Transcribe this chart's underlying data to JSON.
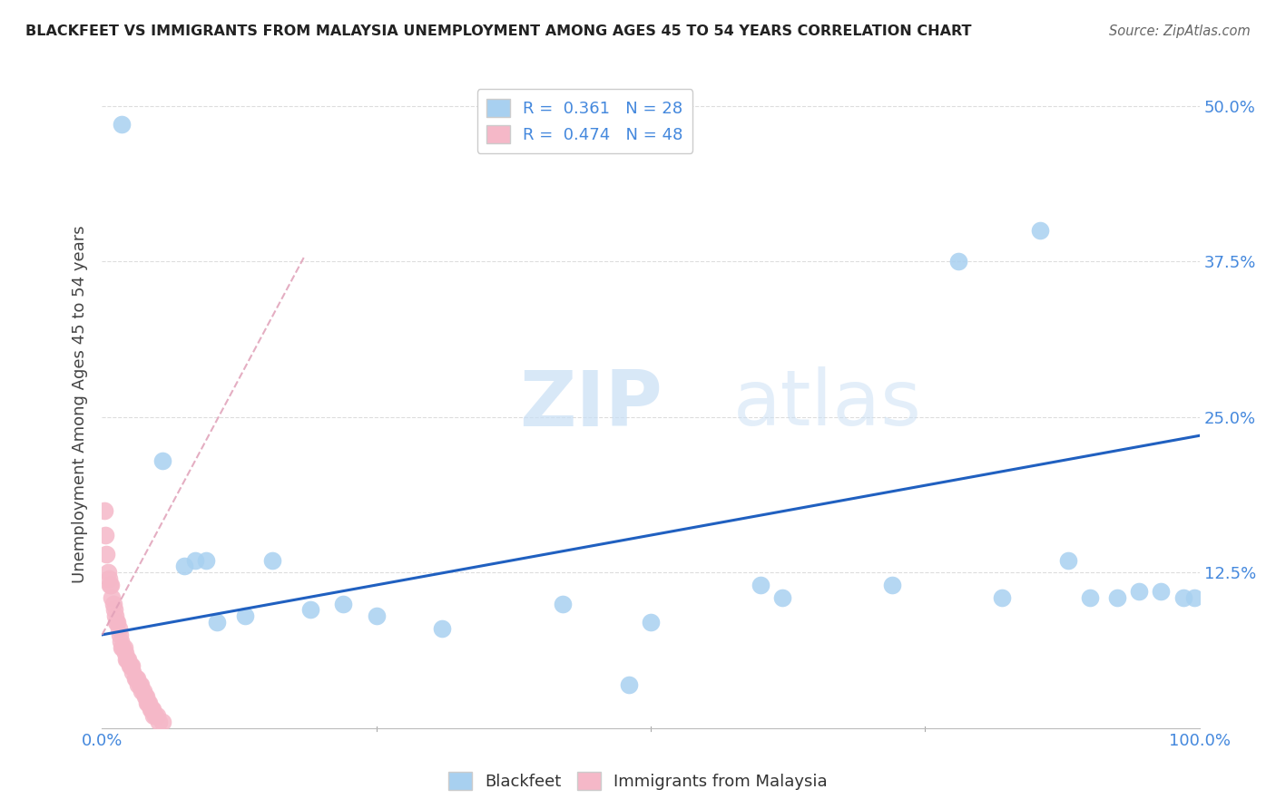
{
  "title": "BLACKFEET VS IMMIGRANTS FROM MALAYSIA UNEMPLOYMENT AMONG AGES 45 TO 54 YEARS CORRELATION CHART",
  "source": "Source: ZipAtlas.com",
  "ylabel": "Unemployment Among Ages 45 to 54 years",
  "xlim": [
    0.0,
    1.0
  ],
  "ylim": [
    0.0,
    0.52
  ],
  "ytick_positions": [
    0.0,
    0.125,
    0.25,
    0.375,
    0.5
  ],
  "yticklabels_right": [
    "",
    "12.5%",
    "25.0%",
    "37.5%",
    "50.0%"
  ],
  "blackfeet_R": 0.361,
  "blackfeet_N": 28,
  "malaysia_R": 0.474,
  "malaysia_N": 48,
  "blackfeet_color": "#a8d0f0",
  "malaysia_color": "#f5b8c8",
  "trendline_blue_color": "#2060c0",
  "trendline_pink_color": "#e0a0b8",
  "blackfeet_scatter_x": [
    0.018,
    0.055,
    0.075,
    0.085,
    0.095,
    0.105,
    0.13,
    0.155,
    0.19,
    0.22,
    0.25,
    0.31,
    0.42,
    0.5,
    0.6,
    0.72,
    0.78,
    0.82,
    0.855,
    0.88,
    0.9,
    0.925,
    0.945,
    0.965,
    0.985,
    0.995,
    0.62,
    0.48
  ],
  "blackfeet_scatter_y": [
    0.485,
    0.215,
    0.13,
    0.135,
    0.135,
    0.085,
    0.09,
    0.135,
    0.095,
    0.1,
    0.09,
    0.08,
    0.1,
    0.085,
    0.115,
    0.115,
    0.375,
    0.105,
    0.4,
    0.135,
    0.105,
    0.105,
    0.11,
    0.11,
    0.105,
    0.105,
    0.105,
    0.035
  ],
  "malaysia_scatter_x": [
    0.002,
    0.003,
    0.004,
    0.005,
    0.006,
    0.007,
    0.008,
    0.009,
    0.01,
    0.011,
    0.012,
    0.013,
    0.014,
    0.015,
    0.016,
    0.017,
    0.018,
    0.019,
    0.02,
    0.021,
    0.022,
    0.023,
    0.024,
    0.025,
    0.026,
    0.027,
    0.028,
    0.03,
    0.031,
    0.032,
    0.033,
    0.034,
    0.035,
    0.036,
    0.038,
    0.039,
    0.04,
    0.041,
    0.042,
    0.043,
    0.044,
    0.045,
    0.046,
    0.047,
    0.048,
    0.05,
    0.052,
    0.055
  ],
  "malaysia_scatter_y": [
    0.175,
    0.155,
    0.14,
    0.125,
    0.12,
    0.115,
    0.115,
    0.105,
    0.1,
    0.095,
    0.09,
    0.085,
    0.085,
    0.08,
    0.075,
    0.07,
    0.065,
    0.065,
    0.065,
    0.06,
    0.055,
    0.055,
    0.055,
    0.05,
    0.05,
    0.05,
    0.045,
    0.04,
    0.04,
    0.04,
    0.035,
    0.035,
    0.035,
    0.03,
    0.03,
    0.025,
    0.025,
    0.02,
    0.02,
    0.02,
    0.015,
    0.015,
    0.015,
    0.01,
    0.01,
    0.01,
    0.005,
    0.005
  ],
  "blue_trend_x0": 0.0,
  "blue_trend_y0": 0.075,
  "blue_trend_x1": 1.0,
  "blue_trend_y1": 0.235,
  "pink_trend_x0": 0.0,
  "pink_trend_y0": 0.075,
  "pink_trend_x1": 0.185,
  "pink_trend_y1": 0.38,
  "watermark_zip": "ZIP",
  "watermark_atlas": "atlas",
  "background_color": "#ffffff",
  "grid_color": "#dddddd",
  "tick_color": "#4488dd",
  "label_color": "#444444"
}
